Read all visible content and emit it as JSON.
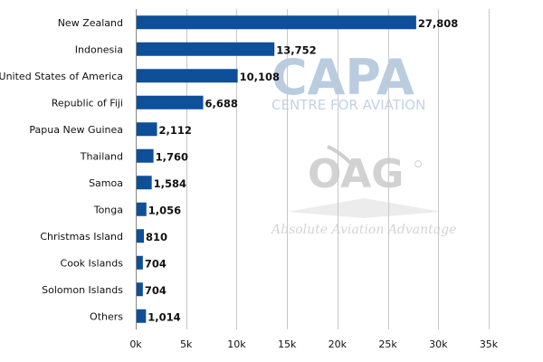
{
  "chart_data": {
    "type": "bar",
    "orientation": "horizontal",
    "title": "",
    "xlabel": "",
    "ylabel": "",
    "categories": [
      "New Zealand",
      "Indonesia",
      "United States of America",
      "Republic of Fiji",
      "Papua New Guinea",
      "Thailand",
      "Samoa",
      "Tonga",
      "Christmas Island",
      "Cook Islands",
      "Solomon Islands",
      "Others"
    ],
    "values": [
      27808,
      13752,
      10108,
      6688,
      2112,
      1760,
      1584,
      1056,
      810,
      704,
      704,
      1014
    ],
    "value_labels": [
      "27,808",
      "13,752",
      "10,108",
      "6,688",
      "2,112",
      "1,760",
      "1,584",
      "1,056",
      "810",
      "704",
      "704",
      "1,014"
    ],
    "xlim": [
      0,
      35000
    ],
    "ticks": [
      0,
      5000,
      10000,
      15000,
      20000,
      25000,
      30000,
      35000
    ],
    "tick_labels": [
      "0k",
      "5k",
      "10k",
      "15k",
      "20k",
      "25k",
      "30k",
      "35k"
    ],
    "grid": true,
    "bar_color": "#0d4f99"
  },
  "watermarks": {
    "capa": "CAPA",
    "capa_sub": "CENTRE FOR AVIATION",
    "oag": "OAG",
    "oag_sub": "Absolute Aviation Advantage"
  }
}
